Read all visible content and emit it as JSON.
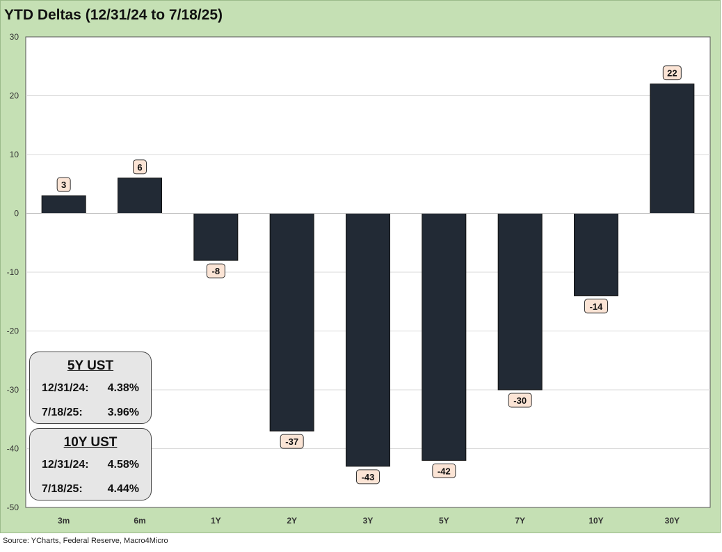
{
  "chart_data": {
    "type": "bar",
    "title": "YTD Deltas (12/31/24 to 7/18/25)",
    "categories": [
      "3m",
      "6m",
      "1Y",
      "2Y",
      "3Y",
      "5Y",
      "7Y",
      "10Y",
      "30Y"
    ],
    "values": [
      3,
      6,
      -8,
      -37,
      -43,
      -42,
      -30,
      -14,
      22
    ],
    "ylim": [
      -50,
      30
    ],
    "yticks": [
      30,
      20,
      10,
      0,
      -10,
      -20,
      -30,
      -40,
      -50
    ],
    "xlabel": "",
    "ylabel": "",
    "grid": true,
    "bar_color": "#222a35",
    "label_fill": "#fbe4d5",
    "background_color": "#c5e0b4"
  },
  "info_boxes": [
    {
      "header": "5Y UST",
      "rows": [
        {
          "date": "12/31/24:",
          "value": "4.38%"
        },
        {
          "date": "7/18/25:",
          "value": "3.96%"
        }
      ]
    },
    {
      "header": "10Y UST",
      "rows": [
        {
          "date": "12/31/24:",
          "value": "4.58%"
        },
        {
          "date": "7/18/25:",
          "value": "4.44%"
        }
      ]
    }
  ],
  "source": "Source: YCharts, Federal Reserve, Macro4Micro"
}
